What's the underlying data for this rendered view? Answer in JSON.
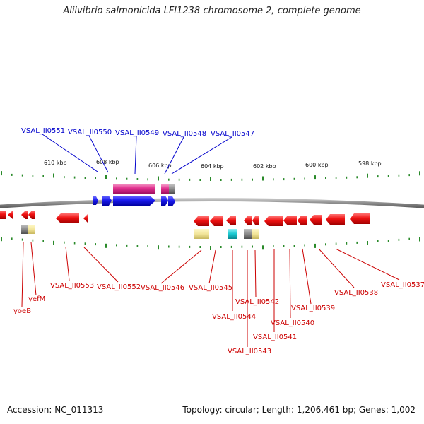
{
  "title": "Aliivibrio salmonicida LFI1238 chromosome 2, complete genome",
  "accession": "Accession: NC_011313",
  "summary": "Topology: circular; Length: 1,206,461 bp; Genes: 1,002",
  "tick_labels": [
    "610 kbp",
    "608 kbp",
    "606 kbp",
    "604 kbp",
    "602 kbp",
    "600 kbp",
    "598 kbp"
  ],
  "top_labels": [
    "VSAL_II0551",
    "VSAL_II0550",
    "VSAL_II0549",
    "VSAL_II0548",
    "VSAL_II0547"
  ],
  "bottom_labels": [
    "yoeB",
    "yefM",
    "VSAL_II0553",
    "VSAL_II0552",
    "VSAL_II0546",
    "VSAL_II0545",
    "VSAL_II0544",
    "VSAL_II0543",
    "VSAL_II0542",
    "VSAL_II0541",
    "VSAL_II0540",
    "VSAL_II0539",
    "VSAL_II0538",
    "VSAL_II0537"
  ],
  "colors": {
    "forward_label": "#0000cc",
    "reverse_label": "#cc0000",
    "forward_gene": "#1a1aee",
    "reverse_gene": "#ee1111",
    "rna": "#e0308f",
    "pseudo": "#8a8a8a",
    "misc": "#f2e59a",
    "cyan": "#18c8d0",
    "tick": "#2a8a2a",
    "backbone": "#888888"
  }
}
